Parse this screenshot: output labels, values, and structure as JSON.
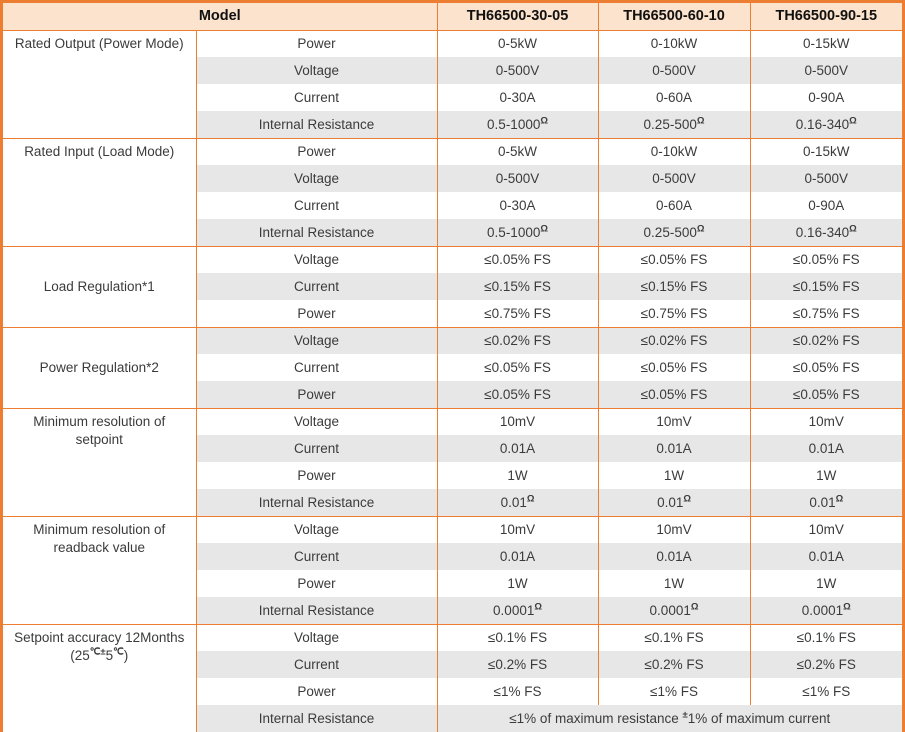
{
  "colors": {
    "border_orange": "#ED7D31",
    "header_fill": "#FBE3CD",
    "row_gray": "#E7E7E7",
    "row_white": "#FFFFFF",
    "text": "#3B3B3B"
  },
  "table": {
    "header": {
      "model_label": "Model",
      "models": [
        "TH66500-30-05",
        "TH66500-60-10",
        "TH66500-90-15"
      ]
    },
    "groups": [
      {
        "label_lines": [
          "Rated Output (Power Mode)"
        ],
        "align": "top",
        "rows": [
          {
            "param": "Power",
            "values": [
              "0-5kW",
              "0-10kW",
              "0-15kW"
            ]
          },
          {
            "param": "Voltage",
            "values": [
              "0-500V",
              "0-500V",
              "0-500V"
            ]
          },
          {
            "param": "Current",
            "values": [
              "0-30A",
              "0-60A",
              "0-90A"
            ]
          },
          {
            "param": "Internal Resistance",
            "values": [
              "0.5-1000^Ω",
              "0.25-500^Ω",
              "0.16-340^Ω"
            ]
          }
        ]
      },
      {
        "label_lines": [
          "Rated Input (Load Mode)"
        ],
        "align": "top",
        "rows": [
          {
            "param": "Power",
            "values": [
              "0-5kW",
              "0-10kW",
              "0-15kW"
            ]
          },
          {
            "param": "Voltage",
            "values": [
              "0-500V",
              "0-500V",
              "0-500V"
            ]
          },
          {
            "param": "Current",
            "values": [
              "0-30A",
              "0-60A",
              "0-90A"
            ]
          },
          {
            "param": "Internal Resistance",
            "values": [
              "0.5-1000^Ω",
              "0.25-500^Ω",
              "0.16-340^Ω"
            ]
          }
        ]
      },
      {
        "label_lines": [
          "Load Regulation*1"
        ],
        "align": "middle",
        "rows": [
          {
            "param": "Voltage",
            "values": [
              "≤0.05% FS",
              "≤0.05% FS",
              "≤0.05% FS"
            ]
          },
          {
            "param": "Current",
            "values": [
              "≤0.15% FS",
              "≤0.15% FS",
              "≤0.15% FS"
            ]
          },
          {
            "param": "Power",
            "values": [
              "≤0.75% FS",
              "≤0.75% FS",
              "≤0.75% FS"
            ]
          }
        ]
      },
      {
        "label_lines": [
          "Power Regulation*2"
        ],
        "align": "middle",
        "rows": [
          {
            "param": "Voltage",
            "values": [
              "≤0.02% FS",
              "≤0.02% FS",
              "≤0.02% FS"
            ]
          },
          {
            "param": "Current",
            "values": [
              "≤0.05% FS",
              "≤0.05% FS",
              "≤0.05% FS"
            ]
          },
          {
            "param": "Power",
            "values": [
              "≤0.05% FS",
              "≤0.05% FS",
              "≤0.05% FS"
            ]
          }
        ]
      },
      {
        "label_lines": [
          "Minimum resolution of",
          "setpoint"
        ],
        "align": "top",
        "rows": [
          {
            "param": "Voltage",
            "values": [
              "10mV",
              "10mV",
              "10mV"
            ]
          },
          {
            "param": "Current",
            "values": [
              "0.01A",
              "0.01A",
              "0.01A"
            ]
          },
          {
            "param": "Power",
            "values": [
              "1W",
              "1W",
              "1W"
            ]
          },
          {
            "param": "Internal Resistance",
            "values": [
              "0.01^Ω",
              "0.01^Ω",
              "0.01^Ω"
            ]
          }
        ]
      },
      {
        "label_lines": [
          "Minimum resolution of",
          "readback value"
        ],
        "align": "top",
        "rows": [
          {
            "param": "Voltage",
            "values": [
              "10mV",
              "10mV",
              "10mV"
            ]
          },
          {
            "param": "Current",
            "values": [
              "0.01A",
              "0.01A",
              "0.01A"
            ]
          },
          {
            "param": "Power",
            "values": [
              "1W",
              "1W",
              "1W"
            ]
          },
          {
            "param": "Internal Resistance",
            "values": [
              "0.0001^Ω",
              "0.0001^Ω",
              "0.0001^Ω"
            ]
          }
        ]
      },
      {
        "label_lines": [
          "Setpoint accuracy 12Months",
          "(25^℃±^5^℃^)"
        ],
        "align": "top",
        "rows": [
          {
            "param": "Voltage",
            "values": [
              "≤0.1% FS",
              "≤0.1% FS",
              "≤0.1% FS"
            ]
          },
          {
            "param": "Current",
            "values": [
              "≤0.2% FS",
              "≤0.2% FS",
              "≤0.2% FS"
            ]
          },
          {
            "param": "Power",
            "values": [
              "≤1% FS",
              "≤1% FS",
              "≤1% FS"
            ]
          },
          {
            "param": "Internal Resistance",
            "merged_value": "≤1% of maximum resistance ^±^1% of maximum current"
          }
        ]
      }
    ]
  }
}
